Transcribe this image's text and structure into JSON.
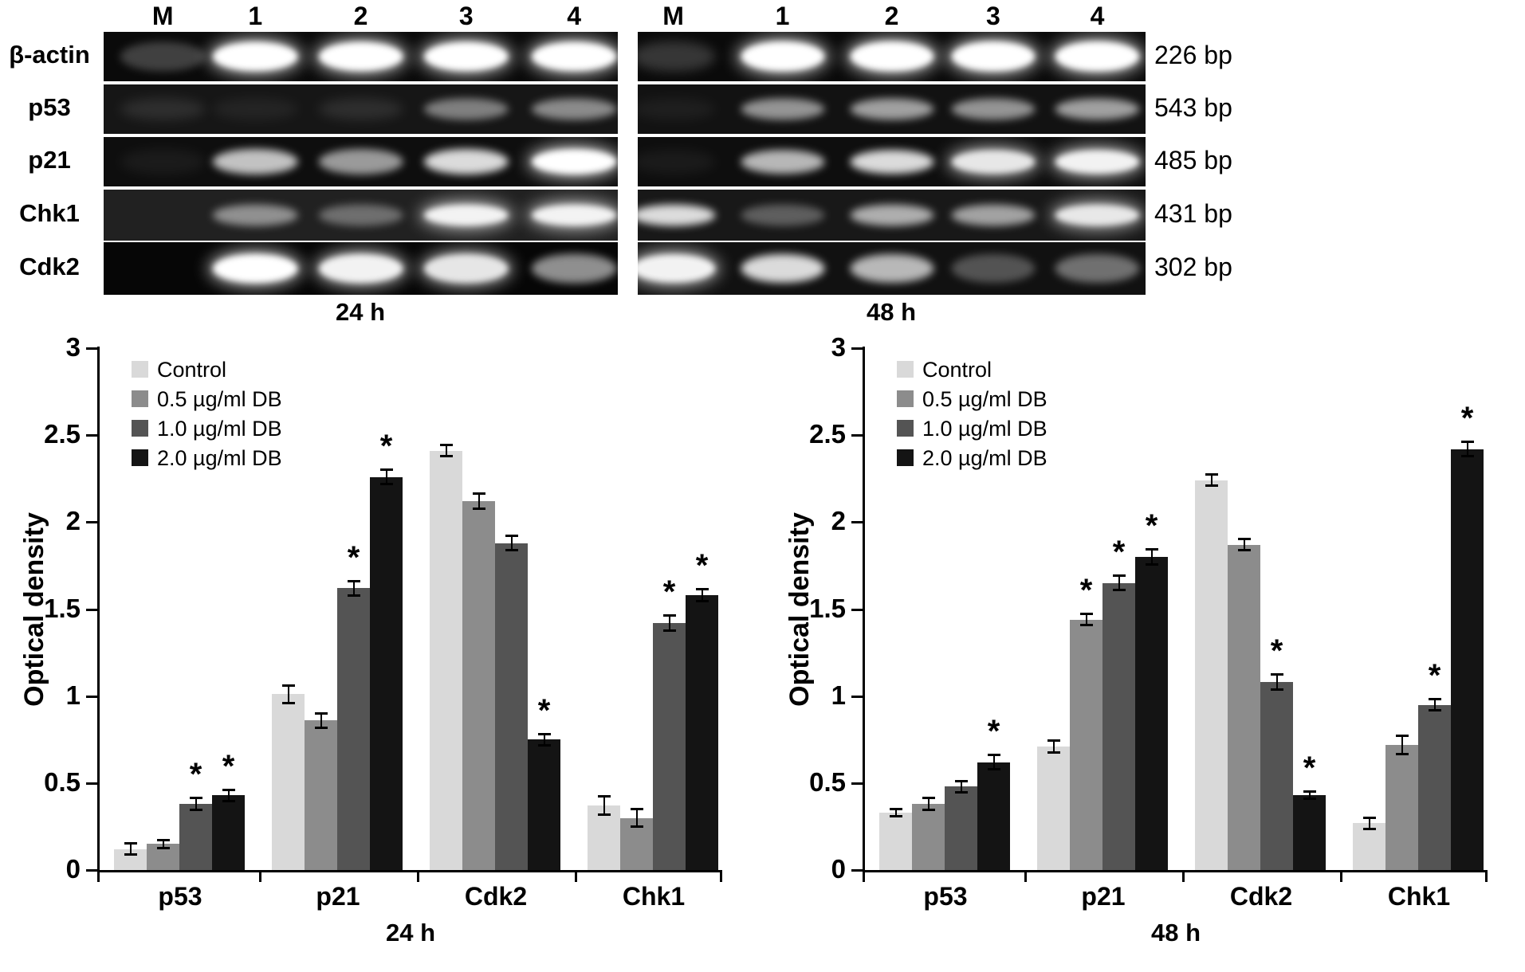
{
  "gels": {
    "lane_headers": [
      "M",
      "1",
      "2",
      "3",
      "4"
    ],
    "rows": [
      {
        "label": "β-actin",
        "bp": "226 bp"
      },
      {
        "label": "p53",
        "bp": "543 bp"
      },
      {
        "label": "p21",
        "bp": "485 bp"
      },
      {
        "label": "Chk1",
        "bp": "431 bp"
      },
      {
        "label": "Cdk2",
        "bp": "302 bp"
      }
    ],
    "panels": [
      {
        "time": "24 h",
        "lane_fracs": [
          0.115,
          0.295,
          0.5,
          0.705,
          0.915
        ],
        "rows": [
          {
            "bg": "#0a0a0a",
            "band_h": 0.6,
            "bands": [
              0.22,
              1,
              1,
              1,
              1
            ]
          },
          {
            "bg": "#161616",
            "band_h": 0.44,
            "bands": [
              0.1,
              0.06,
              0.1,
              0.45,
              0.5
            ]
          },
          {
            "bg": "#0e0e0e",
            "band_h": 0.52,
            "bands": [
              0.05,
              0.75,
              0.58,
              0.85,
              1
            ]
          },
          {
            "bg": "#212121",
            "band_h": 0.42,
            "bands": [
              0,
              0.5,
              0.35,
              0.95,
              0.95
            ]
          },
          {
            "bg": "#060606",
            "band_h": 0.56,
            "bands": [
              0,
              1,
              0.95,
              0.9,
              0.55
            ]
          }
        ]
      },
      {
        "time": "48 h",
        "lane_fracs": [
          0.07,
          0.285,
          0.5,
          0.7,
          0.905
        ],
        "rows": [
          {
            "bg": "#0a0a0a",
            "band_h": 0.62,
            "bands": [
              0.18,
              1,
              1,
              1,
              1
            ]
          },
          {
            "bg": "#121212",
            "band_h": 0.44,
            "bands": [
              0.05,
              0.55,
              0.6,
              0.55,
              0.6
            ]
          },
          {
            "bg": "#0e0e0e",
            "band_h": 0.48,
            "bands": [
              0.05,
              0.7,
              0.85,
              0.9,
              0.95
            ]
          },
          {
            "bg": "#181818",
            "band_h": 0.42,
            "bands": [
              0.85,
              0.3,
              0.65,
              0.6,
              0.9
            ]
          },
          {
            "bg": "#111111",
            "band_h": 0.55,
            "bands": [
              0.95,
              0.85,
              0.7,
              0.28,
              0.4
            ]
          }
        ]
      }
    ]
  },
  "chart_data": [
    {
      "type": "bar",
      "title": "24 h",
      "ylabel": "Optical density",
      "ylim": [
        0,
        3
      ],
      "yticks": [
        0,
        0.5,
        1,
        1.5,
        2,
        2.5,
        3
      ],
      "categories": [
        "p53",
        "p21",
        "Cdk2",
        "Chk1"
      ],
      "legend_position": "top-left",
      "grid": false,
      "series": [
        {
          "name": "Control",
          "color": "#d9d9d9",
          "values": [
            0.12,
            1.01,
            2.41,
            0.37
          ],
          "errors": [
            0.03,
            0.05,
            0.03,
            0.05
          ],
          "sig": [
            false,
            false,
            false,
            false
          ]
        },
        {
          "name": "0.5 µg/ml DB",
          "color": "#8c8c8c",
          "values": [
            0.15,
            0.86,
            2.12,
            0.3
          ],
          "errors": [
            0.02,
            0.04,
            0.04,
            0.05
          ],
          "sig": [
            false,
            false,
            false,
            false
          ]
        },
        {
          "name": "1.0 µg/ml DB",
          "color": "#545454",
          "values": [
            0.38,
            1.62,
            1.88,
            1.42
          ],
          "errors": [
            0.03,
            0.04,
            0.04,
            0.04
          ],
          "sig": [
            true,
            true,
            false,
            true
          ]
        },
        {
          "name": "2.0 µg/ml DB",
          "color": "#141414",
          "values": [
            0.43,
            2.26,
            0.75,
            1.58
          ],
          "errors": [
            0.03,
            0.04,
            0.03,
            0.03
          ],
          "sig": [
            true,
            true,
            true,
            true
          ]
        }
      ]
    },
    {
      "type": "bar",
      "title": "48 h",
      "ylabel": "Optical density",
      "ylim": [
        0,
        3
      ],
      "yticks": [
        0,
        0.5,
        1,
        1.5,
        2,
        2.5,
        3
      ],
      "categories": [
        "p53",
        "p21",
        "Cdk2",
        "Chk1"
      ],
      "legend_position": "top-left",
      "grid": false,
      "series": [
        {
          "name": "Control",
          "color": "#d9d9d9",
          "values": [
            0.33,
            0.71,
            2.24,
            0.27
          ],
          "errors": [
            0.02,
            0.03,
            0.03,
            0.03
          ],
          "sig": [
            false,
            false,
            false,
            false
          ]
        },
        {
          "name": "0.5 µg/ml DB",
          "color": "#8c8c8c",
          "values": [
            0.38,
            1.44,
            1.87,
            0.72
          ],
          "errors": [
            0.03,
            0.03,
            0.03,
            0.05
          ],
          "sig": [
            false,
            true,
            false,
            false
          ]
        },
        {
          "name": "1.0 µg/ml DB",
          "color": "#545454",
          "values": [
            0.48,
            1.65,
            1.08,
            0.95
          ],
          "errors": [
            0.03,
            0.04,
            0.04,
            0.03
          ],
          "sig": [
            false,
            true,
            true,
            true
          ]
        },
        {
          "name": "2.0 µg/ml DB",
          "color": "#141414",
          "values": [
            0.62,
            1.8,
            0.43,
            2.42
          ],
          "errors": [
            0.04,
            0.04,
            0.02,
            0.04
          ],
          "sig": [
            true,
            true,
            true,
            true
          ]
        }
      ]
    }
  ]
}
